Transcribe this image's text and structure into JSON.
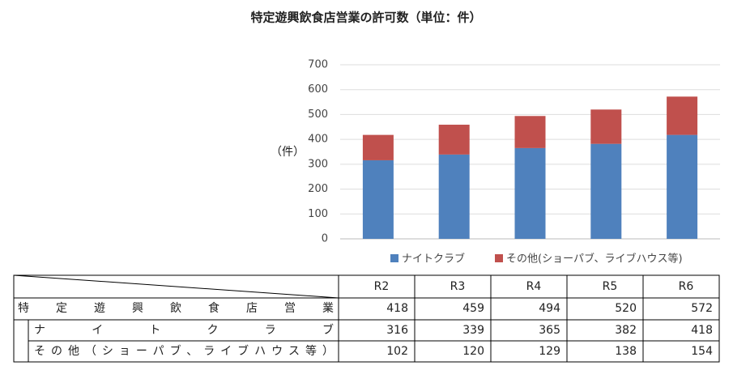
{
  "chart_data": {
    "type": "bar",
    "stacked": true,
    "title": "特定遊興飲食店営業の許可数（単位：件）",
    "y_label": "（件）",
    "categories": [
      "R2",
      "R3",
      "R4",
      "R5",
      "R6"
    ],
    "series": [
      {
        "name": "ナイトクラブ",
        "color": "#4f81bd",
        "values": [
          316,
          339,
          365,
          382,
          418
        ]
      },
      {
        "name": "その他(ショーパブ、ライブハウス等)",
        "color": "#c0504d",
        "values": [
          102,
          120,
          129,
          138,
          154
        ]
      }
    ],
    "ylim": [
      0,
      700
    ],
    "yticks": [
      0,
      100,
      200,
      300,
      400,
      500,
      600,
      700
    ],
    "grid": true,
    "legend": "bottom"
  },
  "table": {
    "header": [
      "R2",
      "R3",
      "R4",
      "R5",
      "R6"
    ],
    "rows": [
      {
        "label": "特定遊興飲食店営業",
        "values": [
          418,
          459,
          494,
          520,
          572
        ]
      },
      {
        "label": "ナイトクラブ",
        "values": [
          316,
          339,
          365,
          382,
          418
        ]
      },
      {
        "label": "その他（ショーパブ、ライブハウス等）",
        "values": [
          102,
          120,
          129,
          138,
          154
        ]
      }
    ]
  }
}
